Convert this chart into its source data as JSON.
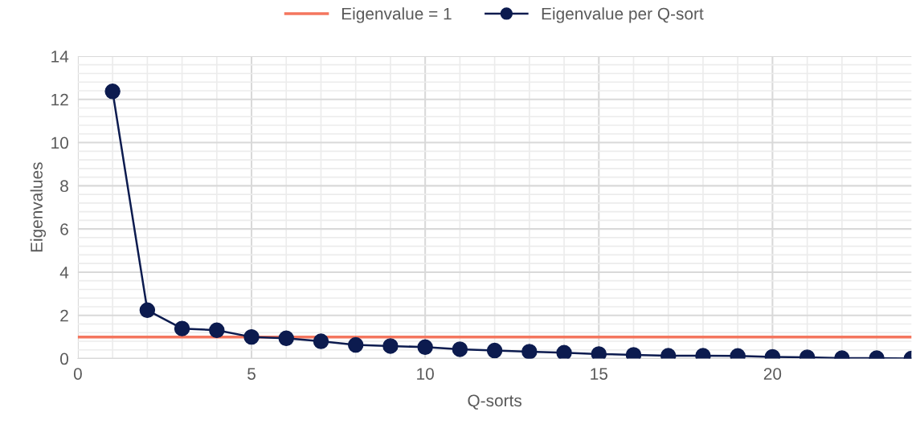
{
  "chart_data": {
    "type": "line",
    "xlabel": "Q-sorts",
    "ylabel": "Eigenvalues",
    "x": [
      1,
      2,
      3,
      4,
      5,
      6,
      7,
      8,
      9,
      10,
      11,
      12,
      13,
      14,
      15,
      16,
      17,
      18,
      19,
      20,
      21,
      22,
      23,
      24
    ],
    "series": [
      {
        "name": "Eigenvalue per Q-sort",
        "color": "#0c1b4f",
        "values": [
          12.37,
          2.24,
          1.39,
          1.31,
          1.0,
          0.94,
          0.8,
          0.63,
          0.58,
          0.53,
          0.43,
          0.37,
          0.32,
          0.27,
          0.21,
          0.17,
          0.13,
          0.13,
          0.12,
          0.08,
          0.06,
          0.02,
          0.02,
          0.0
        ]
      }
    ],
    "ref_lines": [
      {
        "axis": "y",
        "value": 1,
        "label": "Eigenvalue = 1",
        "color": "#f4765e"
      }
    ],
    "xlim": [
      0,
      24
    ],
    "xticks": [
      0,
      {
        "value": 1,
        "label": null
      },
      {
        "value": 2,
        "label": null
      },
      {
        "value": 3,
        "label": null
      },
      {
        "value": 4,
        "label": null
      },
      5,
      {
        "value": 6,
        "label": null
      },
      {
        "value": 7,
        "label": null
      },
      {
        "value": 8,
        "label": null
      },
      {
        "value": 9,
        "label": null
      },
      10,
      {
        "value": 11,
        "label": null
      },
      {
        "value": 12,
        "label": null
      },
      {
        "value": 13,
        "label": null
      },
      {
        "value": 14,
        "label": null
      },
      15,
      {
        "value": 16,
        "label": null
      },
      {
        "value": 17,
        "label": null
      },
      {
        "value": 18,
        "label": null
      },
      {
        "value": 19,
        "label": null
      },
      20,
      {
        "value": 21,
        "label": null
      },
      {
        "value": 22,
        "label": null
      },
      {
        "value": 23,
        "label": null
      }
    ],
    "ylim": [
      0,
      14
    ],
    "yticks": [
      0,
      {
        "value": 0.4,
        "label": null
      },
      {
        "value": 0.8,
        "label": null
      },
      {
        "value": 1.2,
        "label": null
      },
      {
        "value": 1.6,
        "label": null
      },
      2,
      {
        "value": 2.4,
        "label": null
      },
      {
        "value": 2.8,
        "label": null
      },
      {
        "value": 3.2,
        "label": null
      },
      {
        "value": 3.6,
        "label": null
      },
      4,
      {
        "value": 4.4,
        "label": null
      },
      {
        "value": 4.8,
        "label": null
      },
      {
        "value": 5.2,
        "label": null
      },
      {
        "value": 5.6,
        "label": null
      },
      6,
      {
        "value": 6.4,
        "label": null
      },
      {
        "value": 6.8,
        "label": null
      },
      {
        "value": 7.2,
        "label": null
      },
      {
        "value": 7.6,
        "label": null
      },
      8,
      {
        "value": 8.4,
        "label": null
      },
      {
        "value": 8.8,
        "label": null
      },
      {
        "value": 9.2,
        "label": null
      },
      {
        "value": 9.6,
        "label": null
      },
      10,
      {
        "value": 10.4,
        "label": null
      },
      {
        "value": 10.8,
        "label": null
      },
      {
        "value": 11.2,
        "label": null
      },
      {
        "value": 11.6,
        "label": null
      },
      12,
      {
        "value": 12.4,
        "label": null
      },
      {
        "value": 12.8,
        "label": null
      },
      {
        "value": 13.2,
        "label": null
      },
      {
        "value": 13.6,
        "label": null
      },
      14
    ],
    "grid": true,
    "legend": "top",
    "marker": "circle",
    "line_style": "solid"
  }
}
